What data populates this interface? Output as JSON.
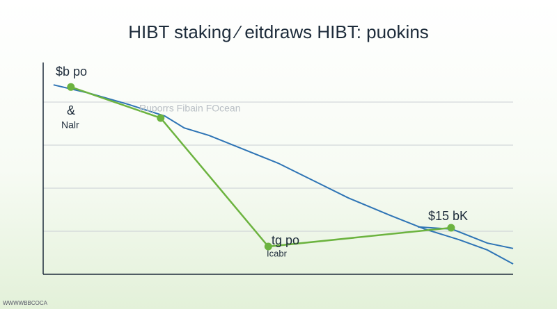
{
  "chart_data": {
    "type": "line",
    "title": "HIBT staking ⁄ eitdraws HIBT: puokins",
    "xlim": [
      0,
      100
    ],
    "ylim": [
      0,
      100
    ],
    "yticks": [
      20,
      40,
      60,
      80
    ],
    "grid": true,
    "series": [
      {
        "color": "#2e74b5",
        "x": [
          2.2,
          10,
          18,
          25.9,
          30,
          35.3,
          42.7,
          50,
          57.5,
          64.9,
          73.8,
          81.2,
          88.6,
          94.5,
          100
        ],
        "values": [
          88,
          84,
          79,
          73.5,
          68,
          64.5,
          58,
          51.6,
          43.5,
          35.5,
          27.4,
          21,
          16,
          11.3,
          4.8
        ]
      },
      {
        "color": "#2e74b5",
        "x": [
          79.7,
          87,
          94.5,
          100
        ],
        "values": [
          22,
          21,
          14.5,
          12
        ]
      },
      {
        "color": "#6cb33f",
        "x": [
          5.9,
          25,
          47.9,
          86.8
        ],
        "values": [
          87,
          72.6,
          12.9,
          21.6
        ],
        "markers": true
      }
    ],
    "annotations": [
      "$b po",
      "&",
      "Nalr",
      "Ruporrs Fibain FOcean",
      "$15 bK",
      "tg po",
      "Icabr"
    ],
    "footer": "WWWWBBCOCA"
  }
}
